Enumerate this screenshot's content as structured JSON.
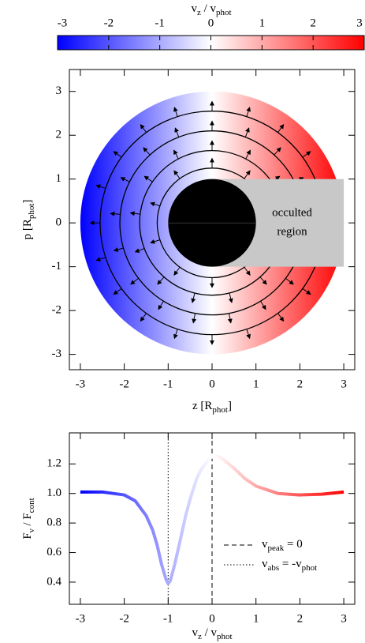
{
  "chart_data": [
    {
      "type": "colorbar",
      "title": [
        "v",
        "z",
        " / v",
        "phot"
      ],
      "colormap": [
        "#0000ff",
        "#ffffff",
        "#ff0000"
      ],
      "xlim": [
        -3,
        3
      ],
      "xticks": [
        -3,
        -2,
        -1,
        0,
        1,
        2,
        3
      ]
    },
    {
      "type": "velocity_map",
      "xlabel": [
        "z [R",
        "phot",
        "]"
      ],
      "ylabel": [
        "p [R",
        "phot",
        "]"
      ],
      "xlim": [
        -3.25,
        3.25
      ],
      "ylim": [
        -3.35,
        3.5
      ],
      "xticks": [
        -3,
        -2,
        -1,
        0,
        1,
        2,
        3
      ],
      "yticks": [
        -3,
        -2,
        -1,
        0,
        1,
        2,
        3
      ],
      "outer_radius": 3,
      "core_radius": 1,
      "shell_radii": [
        1.25,
        1.65,
        2.1,
        2.55
      ],
      "occulted_region": {
        "z": [
          0,
          3
        ],
        "p": [
          -1,
          1
        ],
        "label": [
          "occulted",
          "region"
        ],
        "color": "#c8c8c8"
      }
    },
    {
      "type": "line",
      "xlabel": [
        "v",
        "z",
        " / v",
        "phot"
      ],
      "ylabel": [
        "F",
        "ν",
        " / F",
        "cont"
      ],
      "x": [
        -3,
        -2.5,
        -2,
        -1.75,
        -1.5,
        -1.35,
        -1.25,
        -1.15,
        -1.05,
        -1,
        -0.95,
        -0.85,
        -0.75,
        -0.6,
        -0.5,
        -0.35,
        -0.25,
        -0.1,
        0,
        0.15,
        0.3,
        0.5,
        0.75,
        1,
        1.5,
        2,
        2.5,
        3
      ],
      "values": [
        1.01,
        1.01,
        0.99,
        0.95,
        0.85,
        0.75,
        0.65,
        0.52,
        0.42,
        0.39,
        0.41,
        0.52,
        0.65,
        0.85,
        0.96,
        1.1,
        1.16,
        1.22,
        1.25,
        1.25,
        1.22,
        1.17,
        1.1,
        1.05,
        1.0,
        0.99,
        0.995,
        1.01
      ],
      "xlim": [
        -3.25,
        3.25
      ],
      "ylim": [
        0.25,
        1.41
      ],
      "xticks": [
        -3,
        -2,
        -1,
        0,
        1,
        2,
        3
      ],
      "yticks": [
        0.4,
        0.6,
        0.8,
        {
          "value": 1,
          "label": "1.0"
        },
        1.2
      ],
      "reference_lines": [
        {
          "name": [
            "v",
            "peak",
            " = 0"
          ],
          "x": 0,
          "dash": "dashed"
        },
        {
          "name": [
            "v",
            "abs",
            " = -v",
            "phot"
          ],
          "x": -1,
          "dash": "dotted"
        }
      ],
      "legend": "lower right"
    }
  ]
}
